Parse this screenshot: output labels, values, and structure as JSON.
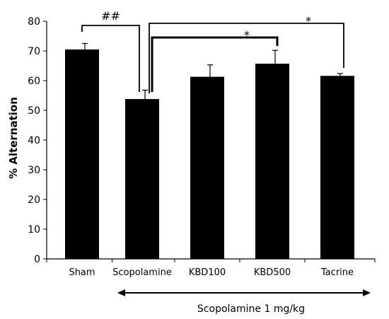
{
  "chart_data": {
    "type": "bar",
    "title": "",
    "xlabel": "",
    "ylabel": "% Alternation",
    "ylim": [
      0,
      80
    ],
    "yticks": [
      0,
      10,
      20,
      30,
      40,
      50,
      60,
      70,
      80
    ],
    "categories": [
      "Sham",
      "Scopolamine",
      "KBD100",
      "KBD500",
      "Tacrine"
    ],
    "values": [
      70.5,
      53.8,
      61.3,
      65.7,
      61.6
    ],
    "errors": [
      2.0,
      3.0,
      4.0,
      4.5,
      0.8
    ],
    "bar_color": "#000000",
    "grid": false,
    "significance": [
      {
        "from": "Sham",
        "to": "Scopolamine",
        "label": "##"
      },
      {
        "from": "Scopolamine",
        "to": "KBD500",
        "label": "*"
      },
      {
        "from": "Scopolamine",
        "to": "Tacrine",
        "label": "*"
      }
    ],
    "group_annotation": {
      "label": "Scopolamine 1 mg/kg",
      "from": "Scopolamine",
      "to": "Tacrine"
    }
  }
}
